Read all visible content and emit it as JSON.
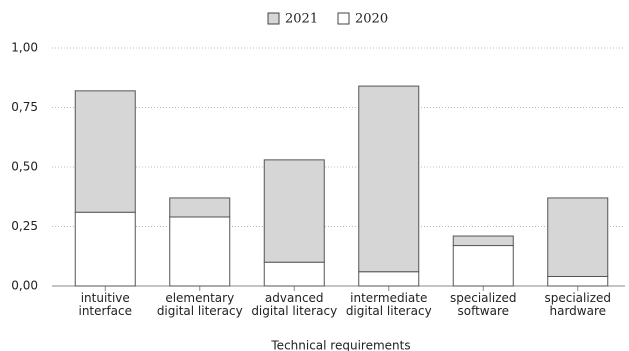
{
  "chart_data": {
    "type": "stacked_bar",
    "x_label": "Technical requirements",
    "categories": [
      "intuitive interface",
      "elementary digital literacy",
      "advanced digital literacy",
      "intermediate digital literacy",
      "specialized software",
      "specialized hardware"
    ],
    "series": [
      {
        "name": "2021",
        "color": "#d6d6d6",
        "values": [
          0.51,
          0.08,
          0.43,
          0.78,
          0.04,
          0.33
        ]
      },
      {
        "name": "2020",
        "color": "#ffffff",
        "values": [
          0.31,
          0.29,
          0.1,
          0.06,
          0.17,
          0.04
        ]
      }
    ],
    "ylim": [
      0,
      1
    ],
    "yticks": [
      {
        "value": 0,
        "label": "0,00"
      },
      {
        "value": 0.25,
        "label": "0,25"
      },
      {
        "value": 0.5,
        "label": "0,50"
      },
      {
        "value": 0.75,
        "label": "0,75"
      },
      {
        "value": 1,
        "label": "1,00"
      }
    ],
    "grid": true
  }
}
